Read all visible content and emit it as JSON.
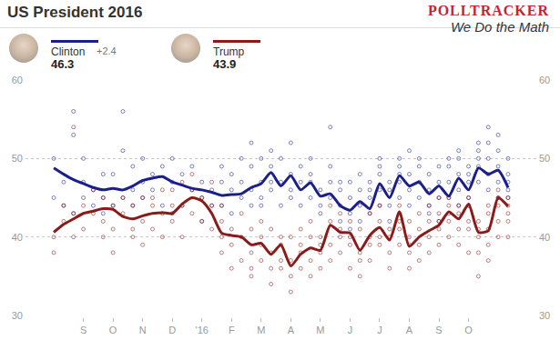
{
  "chart_data": {
    "type": "line",
    "title": "US President 2016",
    "categories": [
      null,
      null,
      null,
      "S",
      null,
      null,
      "O",
      null,
      null,
      "N",
      null,
      null,
      "D",
      null,
      null,
      "'16",
      null,
      null,
      "F",
      null,
      null,
      "M",
      null,
      null,
      "A",
      null,
      null,
      "M",
      null,
      null,
      "J",
      null,
      null,
      "J",
      null,
      null,
      "A",
      null,
      null,
      "S",
      null,
      null,
      "O",
      null,
      null,
      null,
      null
    ],
    "series": [
      {
        "name": "Clinton",
        "color": "#1a1f8c",
        "lead": "+2.4",
        "latest": 46.3,
        "values": [
          48.8,
          48.0,
          47.3,
          46.8,
          46.3,
          46.0,
          46.2,
          46.0,
          46.5,
          47.2,
          47.5,
          47.7,
          47.0,
          46.6,
          46.2,
          46.0,
          45.7,
          45.3,
          45.4,
          45.5,
          46.3,
          46.8,
          48.2,
          46.5,
          47.8,
          46.0,
          46.9,
          45.2,
          45.5,
          44.0,
          43.4,
          44.5,
          43.6,
          46.8,
          45.0,
          47.8,
          46.5,
          47.0,
          45.5,
          46.5,
          45.2,
          47.5,
          46.0,
          48.8,
          48.0,
          48.5,
          46.3
        ],
        "polls": [
          [
            50,
            45
          ],
          [
            47,
            44
          ],
          [
            53,
            56,
            43
          ],
          [
            47,
            45,
            50
          ],
          [
            44,
            46
          ],
          [
            45,
            43,
            48
          ],
          [
            48,
            44
          ],
          [
            51,
            56,
            45
          ],
          [
            49,
            46,
            44
          ],
          [
            47,
            50,
            45
          ],
          [
            46,
            48
          ],
          [
            49,
            44
          ],
          [
            50,
            47,
            43
          ],
          [
            44,
            48
          ],
          [
            49,
            46
          ],
          [
            47,
            45,
            42
          ],
          [
            46,
            44
          ],
          [
            47,
            44,
            49
          ],
          [
            43,
            46,
            48
          ],
          [
            45,
            47,
            50
          ],
          [
            46,
            44,
            52,
            49
          ],
          [
            47,
            50,
            44,
            45
          ],
          [
            51,
            49,
            47,
            46
          ],
          [
            50,
            44,
            47
          ],
          [
            48,
            46,
            45,
            52
          ],
          [
            44,
            49,
            47
          ],
          [
            45,
            47,
            48,
            50
          ],
          [
            43,
            46,
            44
          ],
          [
            54,
            49,
            45,
            47
          ],
          [
            44,
            42,
            46,
            47
          ],
          [
            41,
            45,
            47,
            43
          ],
          [
            44,
            46,
            42,
            48
          ],
          [
            46,
            43,
            45,
            47
          ],
          [
            48,
            50,
            44,
            46,
            49
          ],
          [
            44,
            47,
            46,
            42
          ],
          [
            50,
            47,
            45,
            49,
            48
          ],
          [
            46,
            48,
            44,
            51
          ],
          [
            47,
            49,
            45,
            50
          ],
          [
            44,
            46,
            48,
            43
          ],
          [
            45,
            47,
            49,
            42
          ],
          [
            47,
            45,
            49,
            43,
            50
          ],
          [
            48,
            46,
            50,
            51,
            44
          ],
          [
            45,
            47,
            49,
            44,
            48
          ],
          [
            50,
            52,
            49,
            47,
            51
          ],
          [
            48,
            50,
            54,
            46,
            52
          ],
          [
            49,
            47,
            51,
            53,
            45
          ],
          [
            46,
            48,
            50,
            45,
            47
          ]
        ]
      },
      {
        "name": "Trump",
        "color": "#8b1a1a",
        "latest": 43.9,
        "values": [
          40.6,
          41.6,
          42.3,
          43.0,
          43.3,
          43.6,
          43.5,
          42.6,
          42.3,
          42.7,
          43.0,
          43.1,
          43.0,
          44.2,
          45.0,
          44.6,
          43.0,
          40.5,
          40.2,
          40.0,
          39.0,
          39.2,
          37.8,
          39.0,
          36.3,
          37.8,
          38.6,
          38.3,
          41.5,
          40.6,
          40.5,
          38.3,
          40.2,
          41.2,
          39.6,
          43.2,
          38.8,
          40.0,
          40.8,
          41.5,
          43.2,
          42.3,
          44.2,
          40.6,
          40.8,
          45.0,
          43.9
        ],
        "polls": [
          [
            40,
            38
          ],
          [
            42,
            44
          ],
          [
            43,
            40,
            54
          ],
          [
            44,
            41
          ],
          [
            43,
            46
          ],
          [
            42,
            45,
            40
          ],
          [
            44,
            41,
            38
          ],
          [
            43,
            45
          ],
          [
            41,
            44,
            40
          ],
          [
            42,
            45,
            39
          ],
          [
            44,
            41,
            45
          ],
          [
            43,
            40,
            46
          ],
          [
            46,
            42,
            44
          ],
          [
            44,
            47,
            40
          ],
          [
            46,
            43,
            48
          ],
          [
            45,
            42
          ],
          [
            47,
            41,
            44
          ],
          [
            40,
            42,
            38,
            44
          ],
          [
            41,
            39,
            36
          ],
          [
            40,
            43,
            37
          ],
          [
            38,
            41,
            36,
            35
          ],
          [
            39,
            37,
            40,
            42
          ],
          [
            36,
            38,
            41,
            34
          ],
          [
            39,
            36,
            40,
            37
          ],
          [
            35,
            37,
            40,
            33
          ],
          [
            38,
            36,
            41,
            39
          ],
          [
            40,
            37,
            35,
            42
          ],
          [
            38,
            40,
            36,
            39
          ],
          [
            42,
            39,
            44,
            37
          ],
          [
            41,
            38,
            40,
            43
          ],
          [
            39,
            42,
            36,
            40
          ],
          [
            38,
            37,
            41,
            35
          ],
          [
            40,
            43,
            37,
            39
          ],
          [
            42,
            39,
            44,
            40
          ],
          [
            38,
            41,
            36,
            40
          ],
          [
            44,
            41,
            42,
            39
          ],
          [
            38,
            40,
            36,
            42,
            39
          ],
          [
            41,
            39,
            43,
            37
          ],
          [
            40,
            42,
            38,
            44
          ],
          [
            41,
            43,
            39,
            45,
            42
          ],
          [
            44,
            42,
            40,
            45
          ],
          [
            41,
            44,
            39,
            43
          ],
          [
            45,
            42,
            44,
            41,
            38
          ],
          [
            40,
            42,
            38,
            41,
            35
          ],
          [
            41,
            43,
            39,
            37,
            44
          ],
          [
            44,
            46,
            42,
            40,
            45
          ],
          [
            44,
            42,
            45,
            40,
            43
          ]
        ]
      }
    ],
    "ylim": [
      30,
      60
    ],
    "yticks": [
      30,
      40,
      50,
      60
    ],
    "grid": true,
    "legend": "top left"
  },
  "brand": {
    "name": "POLLTRACKER",
    "tagline": "We Do the Math"
  }
}
